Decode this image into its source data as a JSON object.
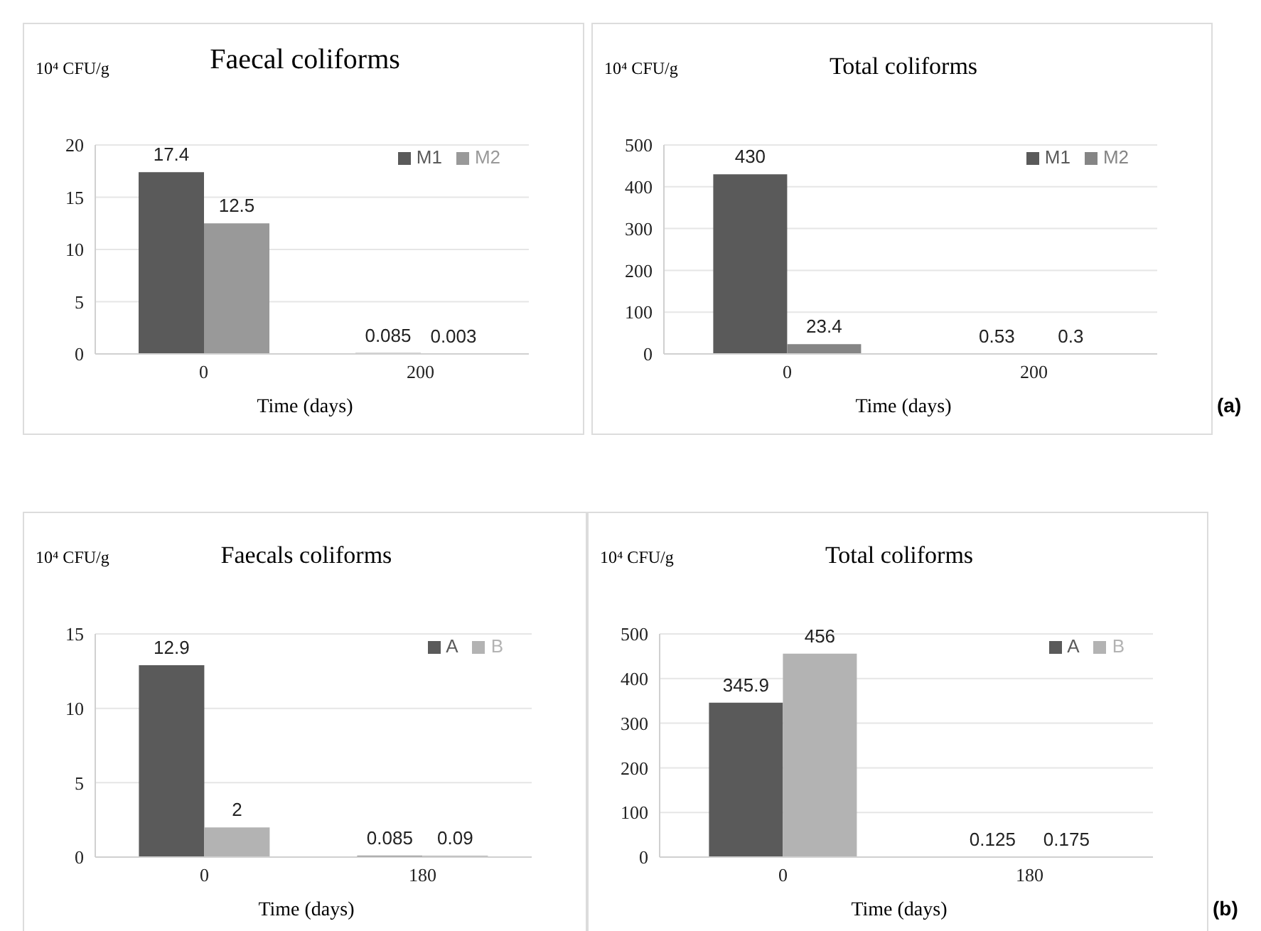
{
  "chart_data": [
    {
      "type": "bar",
      "title": "Faecal coliforms",
      "ylabel": "10⁴ CFU/g",
      "xlabel": "Time (days)",
      "categories": [
        "0",
        "200"
      ],
      "series": [
        {
          "name": "M1",
          "color": "#5a5a5a",
          "values": [
            17.4,
            0.085
          ]
        },
        {
          "name": "M2",
          "color": "#999999",
          "values": [
            12.5,
            0.003
          ]
        }
      ],
      "ylim": [
        0,
        20
      ],
      "yticks": [
        0,
        5,
        10,
        15,
        20
      ],
      "grid": "y",
      "legend": "top right",
      "data_labels": true
    },
    {
      "type": "bar",
      "title": "Total coliforms",
      "ylabel": "10⁴ CFU/g",
      "xlabel": "Time (days)",
      "categories": [
        "0",
        "200"
      ],
      "series": [
        {
          "name": "M1",
          "color": "#5a5a5a",
          "values": [
            430,
            0.53
          ]
        },
        {
          "name": "M2",
          "color": "#858585",
          "values": [
            23.4,
            0.3
          ]
        }
      ],
      "ylim": [
        0,
        500
      ],
      "yticks": [
        0,
        100,
        200,
        300,
        400,
        500
      ],
      "grid": "y",
      "legend": "top right",
      "data_labels": true,
      "annotations": [
        "(a)"
      ]
    },
    {
      "type": "bar",
      "title": "Faecals coliforms",
      "ylabel": "10⁴ CFU/g",
      "xlabel": "Time (days)",
      "categories": [
        "0",
        "180"
      ],
      "series": [
        {
          "name": "A",
          "color": "#5a5a5a",
          "values": [
            12.9,
            0.085
          ]
        },
        {
          "name": "B",
          "color": "#b3b3b3",
          "values": [
            2,
            0.09
          ]
        }
      ],
      "ylim": [
        0,
        15
      ],
      "yticks": [
        0,
        5,
        10,
        15
      ],
      "grid": "y",
      "legend": "top right",
      "data_labels": true
    },
    {
      "type": "bar",
      "title": "Total coliforms",
      "ylabel": "10⁴ CFU/g",
      "xlabel": "Time (days)",
      "categories": [
        "0",
        "180"
      ],
      "series": [
        {
          "name": "A",
          "color": "#5a5a5a",
          "values": [
            345.9,
            0.125
          ]
        },
        {
          "name": "B",
          "color": "#b3b3b3",
          "values": [
            456,
            0.175
          ]
        }
      ],
      "ylim": [
        0,
        500
      ],
      "yticks": [
        0,
        100,
        200,
        300,
        400,
        500
      ],
      "grid": "y",
      "legend": "top right",
      "data_labels": true,
      "annotations": [
        "(b)"
      ]
    }
  ]
}
